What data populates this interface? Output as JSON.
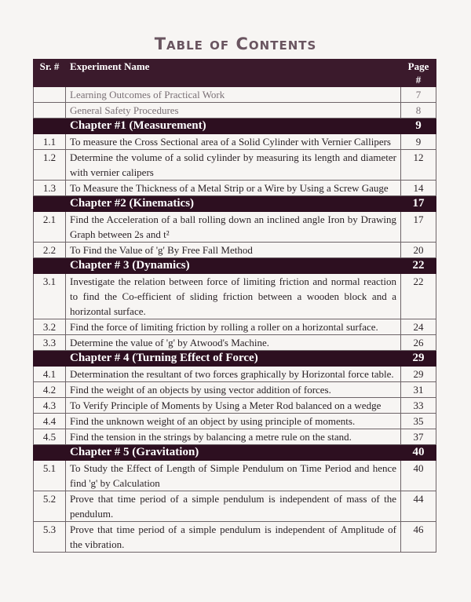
{
  "title": "Table of Contents",
  "columns": {
    "sr": "Sr. #",
    "name": "Experiment Name",
    "page": "Page #"
  },
  "rows": [
    {
      "type": "intro",
      "sr": "",
      "name": "Learning Outcomes of Practical Work",
      "page": "7"
    },
    {
      "type": "intro",
      "sr": "",
      "name": "General Safety Procedures",
      "page": "8"
    },
    {
      "type": "chapter",
      "sr": "",
      "name": "Chapter #1 (Measurement)",
      "page": "9"
    },
    {
      "type": "item",
      "sr": "1.1",
      "name": "To measure the Cross Sectional area of a Solid Cylinder with Vernier Callipers",
      "page": "9"
    },
    {
      "type": "item",
      "sr": "1.2",
      "name": "Determine the volume of a solid cylinder by measuring its length and diameter with vernier calipers",
      "page": "12"
    },
    {
      "type": "item",
      "sr": "1.3",
      "name": "To Measure the Thickness of a Metal Strip or a Wire by Using a Screw Gauge",
      "page": "14"
    },
    {
      "type": "chapter",
      "sr": "",
      "name": "Chapter #2 (Kinematics)",
      "page": "17"
    },
    {
      "type": "item",
      "sr": "2.1",
      "name": "Find the Acceleration of a ball rolling down an inclined angle Iron by Drawing Graph between 2s and t²",
      "page": "17"
    },
    {
      "type": "item",
      "sr": "2.2",
      "name": "To Find the Value of 'g' By Free Fall Method",
      "page": "20"
    },
    {
      "type": "chapter",
      "sr": "",
      "name": "Chapter # 3 (Dynamics)",
      "page": "22"
    },
    {
      "type": "item",
      "sr": "3.1",
      "name": "Investigate the relation between force of limiting friction and normal reaction to find the Co-efficient of sliding friction between a wooden block and a horizontal surface.",
      "page": "22"
    },
    {
      "type": "item",
      "sr": "3.2",
      "name": "Find the force of limiting friction by rolling a roller on a horizontal surface.",
      "page": "24"
    },
    {
      "type": "item",
      "sr": "3.3",
      "name": "Determine the value of 'g' by Atwood's Machine.",
      "page": "26"
    },
    {
      "type": "chapter",
      "sr": "",
      "name": "Chapter # 4 (Turning Effect of Force)",
      "page": "29"
    },
    {
      "type": "item",
      "sr": "4.1",
      "name": "Determination the resultant of two forces graphically by Horizontal force table.",
      "page": "29"
    },
    {
      "type": "item",
      "sr": "4.2",
      "name": "Find the weight of an objects by using vector addition of forces.",
      "page": "31"
    },
    {
      "type": "item",
      "sr": "4.3",
      "name": "To Verify Principle of Moments by Using a Meter Rod balanced on a wedge",
      "page": "33"
    },
    {
      "type": "item",
      "sr": "4.4",
      "name": "Find the unknown weight of an object by using principle of moments.",
      "page": "35"
    },
    {
      "type": "item",
      "sr": "4.5",
      "name": "Find the tension in the strings by balancing a metre rule on the stand.",
      "page": "37"
    },
    {
      "type": "chapter",
      "sr": "",
      "name": "Chapter # 5 (Gravitation)",
      "page": "40"
    },
    {
      "type": "item",
      "sr": "5.1",
      "name": "To Study the Effect of Length of Simple Pendulum on Time Period and hence find 'g' by Calculation",
      "page": "40"
    },
    {
      "type": "item",
      "sr": "5.2",
      "name": "Prove that time period of a simple pendulum is independent of mass of the pendulum.",
      "page": "44"
    },
    {
      "type": "item",
      "sr": "5.3",
      "name": "Prove that time period of a simple pendulum is independent of Amplitude of the vibration.",
      "page": "46"
    }
  ],
  "colors": {
    "header_bg": "#3b1a2c",
    "chapter_bg": "#2d0f20",
    "text": "#2a2226"
  }
}
